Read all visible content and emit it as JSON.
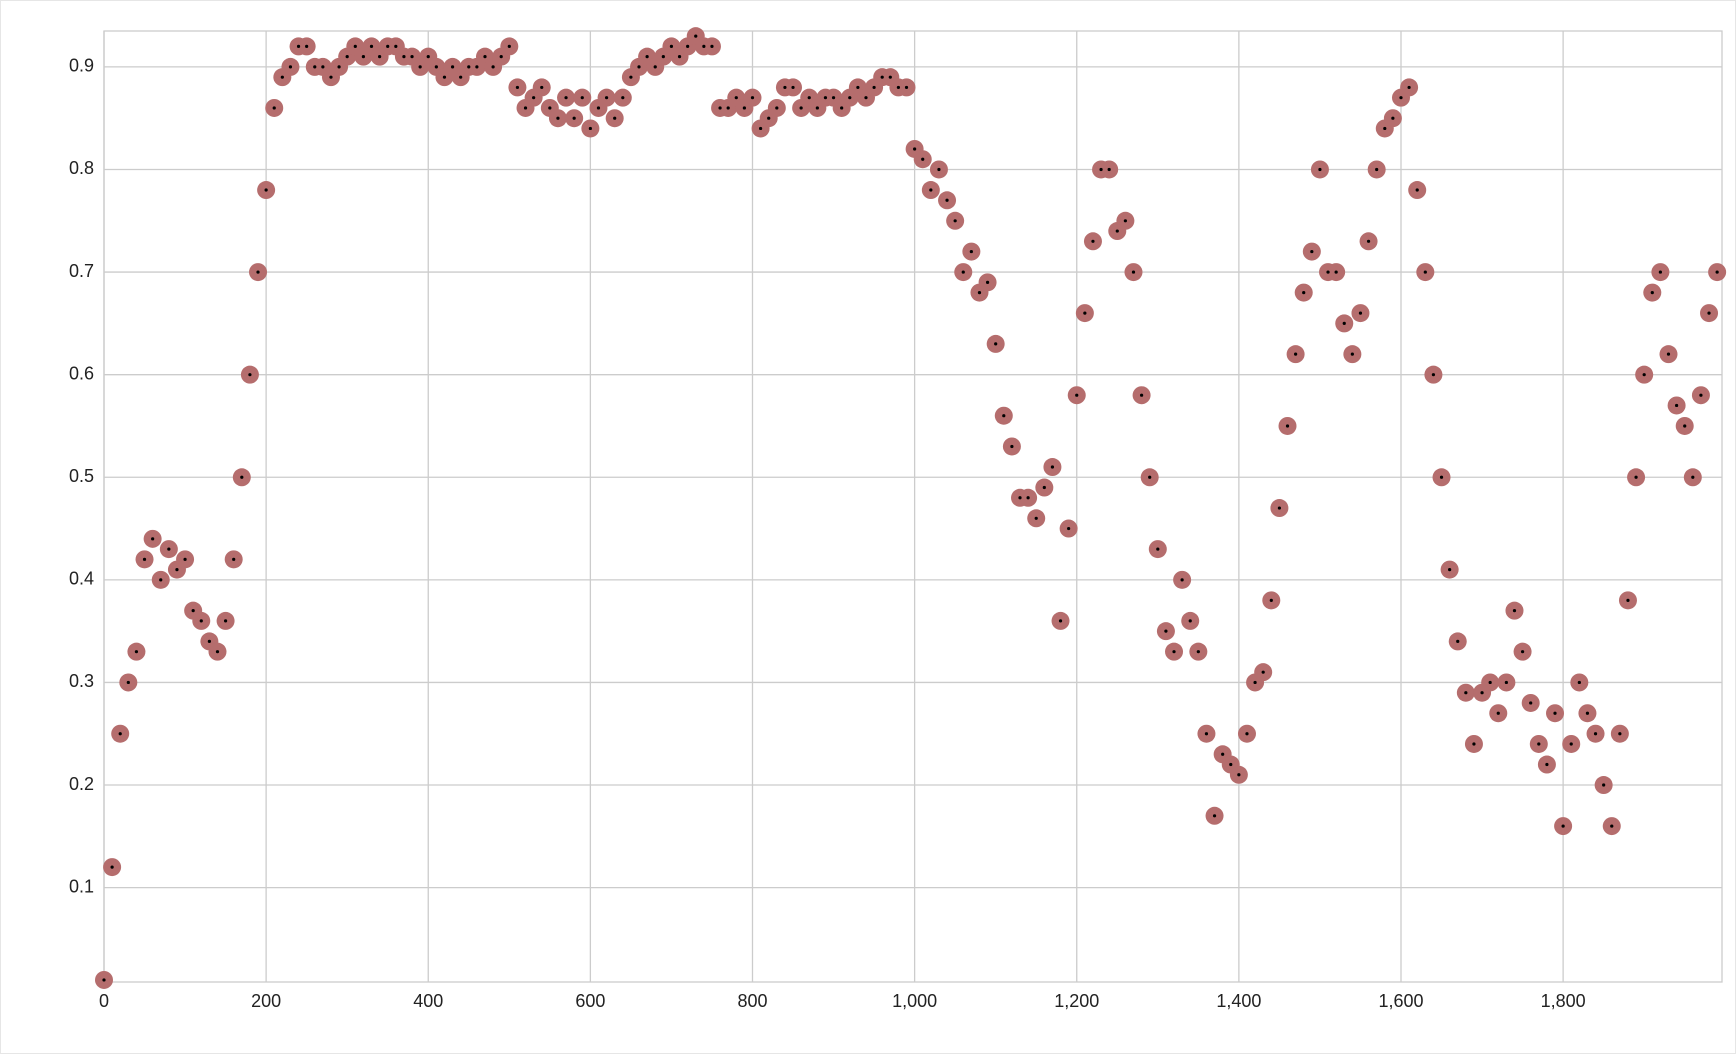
{
  "chart_data": {
    "type": "scatter",
    "x": [
      0,
      10,
      20,
      30,
      40,
      50,
      60,
      70,
      80,
      90,
      100,
      110,
      120,
      130,
      140,
      150,
      160,
      170,
      180,
      190,
      200,
      210,
      220,
      230,
      240,
      250,
      260,
      270,
      280,
      290,
      300,
      310,
      320,
      330,
      340,
      350,
      360,
      370,
      380,
      390,
      400,
      410,
      420,
      430,
      440,
      450,
      460,
      470,
      480,
      490,
      500,
      510,
      520,
      530,
      540,
      550,
      560,
      570,
      580,
      590,
      600,
      610,
      620,
      630,
      640,
      650,
      660,
      670,
      680,
      690,
      700,
      710,
      720,
      730,
      740,
      750,
      760,
      770,
      780,
      790,
      800,
      810,
      820,
      830,
      840,
      850,
      860,
      870,
      880,
      890,
      900,
      910,
      920,
      930,
      940,
      950,
      960,
      970,
      980,
      990,
      1000,
      1010,
      1020,
      1030,
      1040,
      1050,
      1060,
      1070,
      1080,
      1090,
      1100,
      1110,
      1120,
      1130,
      1140,
      1150,
      1160,
      1170,
      1180,
      1190,
      1200,
      1210,
      1220,
      1230,
      1240,
      1250,
      1260,
      1270,
      1280,
      1290,
      1300,
      1310,
      1320,
      1330,
      1340,
      1350,
      1360,
      1370,
      1380,
      1390,
      1400,
      1410,
      1420,
      1430,
      1440,
      1450,
      1460,
      1470,
      1480,
      1490,
      1500,
      1510,
      1520,
      1530,
      1540,
      1550,
      1560,
      1570,
      1580,
      1590,
      1600,
      1610,
      1620,
      1630,
      1640,
      1650,
      1660,
      1670,
      1680,
      1690,
      1700,
      1710,
      1720,
      1730,
      1740,
      1750,
      1760,
      1770,
      1780,
      1790,
      1800,
      1810,
      1820,
      1830,
      1840,
      1850,
      1860,
      1870,
      1880,
      1890,
      1900,
      1910,
      1920,
      1930,
      1940,
      1950,
      1960,
      1970,
      1980,
      1990
    ],
    "values": [
      0.01,
      0.12,
      0.25,
      0.3,
      0.33,
      0.42,
      0.44,
      0.4,
      0.43,
      0.41,
      0.42,
      0.37,
      0.36,
      0.34,
      0.33,
      0.36,
      0.42,
      0.5,
      0.6,
      0.7,
      0.78,
      0.86,
      0.89,
      0.9,
      0.92,
      0.92,
      0.9,
      0.9,
      0.89,
      0.9,
      0.91,
      0.92,
      0.91,
      0.92,
      0.91,
      0.92,
      0.92,
      0.91,
      0.91,
      0.9,
      0.91,
      0.9,
      0.89,
      0.9,
      0.89,
      0.9,
      0.9,
      0.91,
      0.9,
      0.91,
      0.92,
      0.88,
      0.86,
      0.87,
      0.88,
      0.86,
      0.85,
      0.87,
      0.85,
      0.87,
      0.84,
      0.86,
      0.87,
      0.85,
      0.87,
      0.89,
      0.9,
      0.91,
      0.9,
      0.91,
      0.92,
      0.91,
      0.92,
      0.93,
      0.92,
      0.92,
      0.86,
      0.86,
      0.87,
      0.86,
      0.87,
      0.84,
      0.85,
      0.86,
      0.88,
      0.88,
      0.86,
      0.87,
      0.86,
      0.87,
      0.87,
      0.86,
      0.87,
      0.88,
      0.87,
      0.88,
      0.89,
      0.89,
      0.88,
      0.88,
      0.82,
      0.81,
      0.78,
      0.8,
      0.77,
      0.75,
      0.7,
      0.72,
      0.68,
      0.69,
      0.63,
      0.56,
      0.53,
      0.48,
      0.48,
      0.46,
      0.49,
      0.51,
      0.36,
      0.45,
      0.58,
      0.66,
      0.73,
      0.8,
      0.8,
      0.74,
      0.75,
      0.7,
      0.58,
      0.5,
      0.43,
      0.35,
      0.33,
      0.4,
      0.36,
      0.33,
      0.25,
      0.17,
      0.23,
      0.22,
      0.21,
      0.25,
      0.3,
      0.31,
      0.38,
      0.47,
      0.55,
      0.62,
      0.68,
      0.72,
      0.8,
      0.7,
      0.7,
      0.65,
      0.62,
      0.66,
      0.73,
      0.8,
      0.84,
      0.85,
      0.87,
      0.88,
      0.78,
      0.7,
      0.6,
      0.5,
      0.41,
      0.34,
      0.29,
      0.24,
      0.29,
      0.3,
      0.27,
      0.3,
      0.37,
      0.33,
      0.28,
      0.24,
      0.22,
      0.27,
      0.16,
      0.24,
      0.3,
      0.27,
      0.25,
      0.2,
      0.16,
      0.25,
      0.38,
      0.5,
      0.6,
      0.68,
      0.7,
      0.62,
      0.57,
      0.55,
      0.5,
      0.58,
      0.66,
      0.7
    ],
    "color": "#b56d6d",
    "dot_color": "#000000",
    "xlim": [
      0,
      1996
    ],
    "ylim": [
      0.008,
      0.935
    ],
    "xticks": [
      0,
      200,
      400,
      600,
      800,
      {
        "value": 1000,
        "label": "1,000"
      },
      {
        "value": 1200,
        "label": "1,200"
      },
      {
        "value": 1400,
        "label": "1,400"
      },
      {
        "value": 1600,
        "label": "1,600"
      },
      {
        "value": 1800,
        "label": "1,800"
      }
    ],
    "yticks": [
      0.1,
      0.2,
      0.3,
      0.4,
      0.5,
      0.6,
      0.7,
      0.8,
      0.9
    ],
    "grid": true
  }
}
